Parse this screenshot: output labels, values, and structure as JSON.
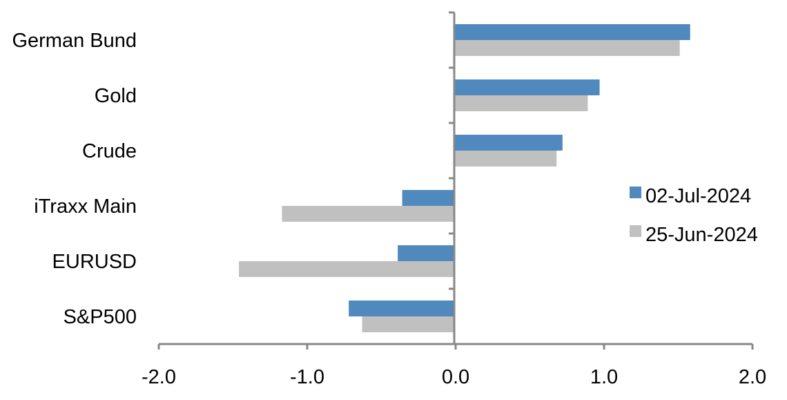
{
  "chart_data": {
    "type": "bar",
    "orientation": "horizontal",
    "categories": [
      "German Bund",
      "Gold",
      "Crude",
      "iTraxx Main",
      "EURUSD",
      "S&P500"
    ],
    "series": [
      {
        "name": "02-Jul-2024",
        "color": "#4f89bd",
        "values": [
          1.58,
          0.97,
          0.72,
          -0.36,
          -0.39,
          -0.72
        ]
      },
      {
        "name": "25-Jun-2024",
        "color": "#c0c0c0",
        "values": [
          1.51,
          0.89,
          0.68,
          -1.17,
          -1.46,
          -0.63
        ]
      }
    ],
    "xlim": [
      -2.0,
      2.0
    ],
    "xticks": [
      "-2.0",
      "-1.0",
      "0.0",
      "1.0",
      "2.0"
    ],
    "grid": false,
    "legend": "right"
  }
}
